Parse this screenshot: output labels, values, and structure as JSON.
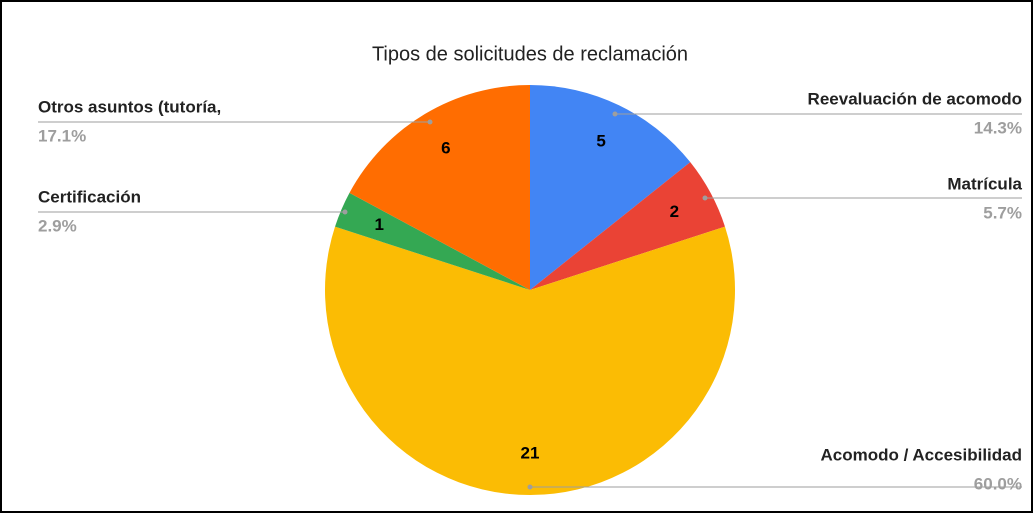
{
  "chart_data": {
    "type": "pie",
    "title": "Tipos de solicitudes de reclamación",
    "categories": [
      "Reevaluación de acomodo",
      "Matrícula",
      "Acomodo / Accesibilidad",
      "Certificación",
      "Otros asuntos (tutoría,"
    ],
    "values": [
      5,
      2,
      21,
      1,
      6
    ],
    "percentages": [
      {
        "value": 14.3,
        "label": "14.3%"
      },
      {
        "value": 5.7,
        "label": "5.7%"
      },
      {
        "value": 60.0,
        "label": "60.0%"
      },
      {
        "value": 2.9,
        "label": "2.9%"
      },
      {
        "value": 17.1,
        "label": "17.1%"
      }
    ],
    "colors": [
      "#4285f4",
      "#ea4335",
      "#fbbc04",
      "#34a853",
      "#ff6d01"
    ]
  }
}
